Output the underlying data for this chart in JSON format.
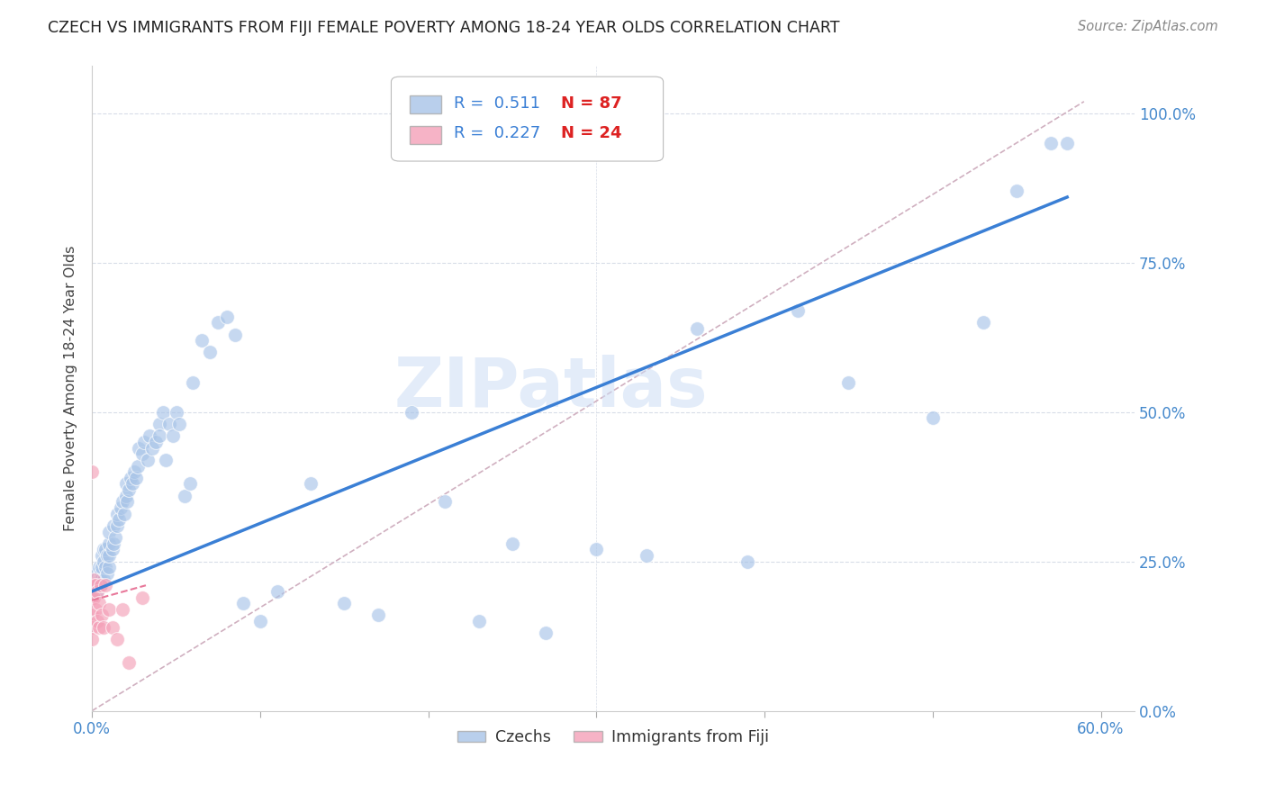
{
  "title": "CZECH VS IMMIGRANTS FROM FIJI FEMALE POVERTY AMONG 18-24 YEAR OLDS CORRELATION CHART",
  "source": "Source: ZipAtlas.com",
  "ylabel": "Female Poverty Among 18-24 Year Olds",
  "czech_color": "#a8c4e8",
  "fiji_color": "#f4a0b8",
  "czech_line_color": "#3a7fd5",
  "fiji_line_color": "#e8789a",
  "ref_line_color": "#d0b0c0",
  "grid_color": "#d8dde8",
  "watermark_color": "#ccddf5",
  "czech_R": 0.511,
  "czech_N": 87,
  "fiji_R": 0.227,
  "fiji_N": 24,
  "watermark": "ZIPatlas",
  "czech_x": [
    0.001,
    0.002,
    0.002,
    0.003,
    0.003,
    0.004,
    0.004,
    0.005,
    0.005,
    0.005,
    0.006,
    0.006,
    0.007,
    0.007,
    0.007,
    0.008,
    0.008,
    0.009,
    0.009,
    0.01,
    0.01,
    0.01,
    0.01,
    0.012,
    0.013,
    0.013,
    0.014,
    0.015,
    0.015,
    0.016,
    0.017,
    0.018,
    0.019,
    0.02,
    0.02,
    0.021,
    0.022,
    0.023,
    0.024,
    0.025,
    0.026,
    0.027,
    0.028,
    0.03,
    0.031,
    0.033,
    0.034,
    0.036,
    0.038,
    0.04,
    0.04,
    0.042,
    0.044,
    0.046,
    0.048,
    0.05,
    0.052,
    0.055,
    0.058,
    0.06,
    0.065,
    0.07,
    0.075,
    0.08,
    0.085,
    0.09,
    0.1,
    0.11,
    0.13,
    0.15,
    0.17,
    0.19,
    0.21,
    0.23,
    0.25,
    0.27,
    0.3,
    0.33,
    0.36,
    0.39,
    0.42,
    0.45,
    0.5,
    0.53,
    0.55,
    0.57,
    0.58
  ],
  "czech_y": [
    0.2,
    0.22,
    0.21,
    0.23,
    0.2,
    0.22,
    0.24,
    0.21,
    0.23,
    0.22,
    0.24,
    0.26,
    0.22,
    0.25,
    0.27,
    0.24,
    0.27,
    0.23,
    0.26,
    0.24,
    0.26,
    0.28,
    0.3,
    0.27,
    0.28,
    0.31,
    0.29,
    0.31,
    0.33,
    0.32,
    0.34,
    0.35,
    0.33,
    0.36,
    0.38,
    0.35,
    0.37,
    0.39,
    0.38,
    0.4,
    0.39,
    0.41,
    0.44,
    0.43,
    0.45,
    0.42,
    0.46,
    0.44,
    0.45,
    0.48,
    0.46,
    0.5,
    0.42,
    0.48,
    0.46,
    0.5,
    0.48,
    0.36,
    0.38,
    0.55,
    0.62,
    0.6,
    0.65,
    0.66,
    0.63,
    0.18,
    0.15,
    0.2,
    0.38,
    0.18,
    0.16,
    0.5,
    0.35,
    0.15,
    0.28,
    0.13,
    0.27,
    0.26,
    0.64,
    0.25,
    0.67,
    0.55,
    0.49,
    0.65,
    0.87,
    0.95,
    0.95
  ],
  "fiji_x": [
    0.0,
    0.0,
    0.0,
    0.0,
    0.0,
    0.0,
    0.001,
    0.001,
    0.002,
    0.002,
    0.003,
    0.003,
    0.004,
    0.004,
    0.005,
    0.006,
    0.007,
    0.008,
    0.01,
    0.012,
    0.015,
    0.018,
    0.022,
    0.03
  ],
  "fiji_y": [
    0.4,
    0.21,
    0.19,
    0.16,
    0.14,
    0.12,
    0.22,
    0.19,
    0.21,
    0.17,
    0.2,
    0.15,
    0.18,
    0.14,
    0.21,
    0.16,
    0.14,
    0.21,
    0.17,
    0.14,
    0.12,
    0.17,
    0.08,
    0.19
  ],
  "xlim": [
    0.0,
    0.62
  ],
  "ylim": [
    0.0,
    1.08
  ],
  "ref_line_x0": 0.0,
  "ref_line_y0": 0.0,
  "ref_line_x1": 0.59,
  "ref_line_y1": 1.02
}
